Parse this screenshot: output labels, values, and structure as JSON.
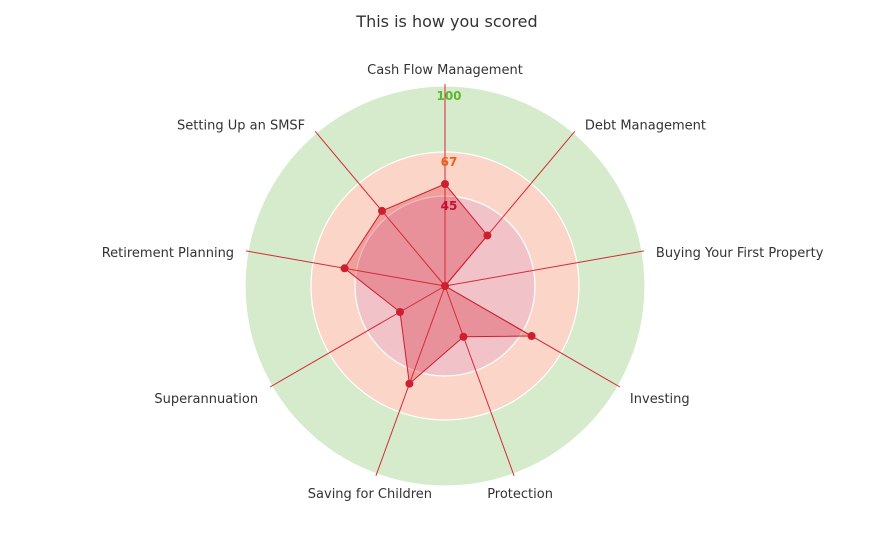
{
  "chart_title": "This is how you scored",
  "chart_data": {
    "type": "radar",
    "title": "This is how you scored",
    "categories": [
      "Cash Flow Management",
      "Debt Management",
      "Buying Your First Property",
      "Investing",
      "Protection",
      "Saving for Children",
      "Superannuation",
      "Retirement Planning",
      "Setting Up an SMSF"
    ],
    "values": [
      51,
      33,
      0,
      50,
      27,
      52,
      26,
      51,
      49
    ],
    "rmax": 100,
    "bands": [
      {
        "label": "45",
        "value": 45,
        "fill": "#f1c3c9",
        "label_color": "#c8102e"
      },
      {
        "label": "67",
        "value": 67,
        "fill": "#fbd6c8",
        "label_color": "#e8641b"
      },
      {
        "label": "100",
        "value": 100,
        "fill": "#d5ebcb",
        "label_color": "#5cb82f"
      }
    ],
    "colors": {
      "series_line": "#cc1f2f",
      "series_fill": "rgba(214, 40, 57, 0.32)",
      "axis_line": "#d42a3a",
      "point": "#cc1f2f"
    }
  }
}
